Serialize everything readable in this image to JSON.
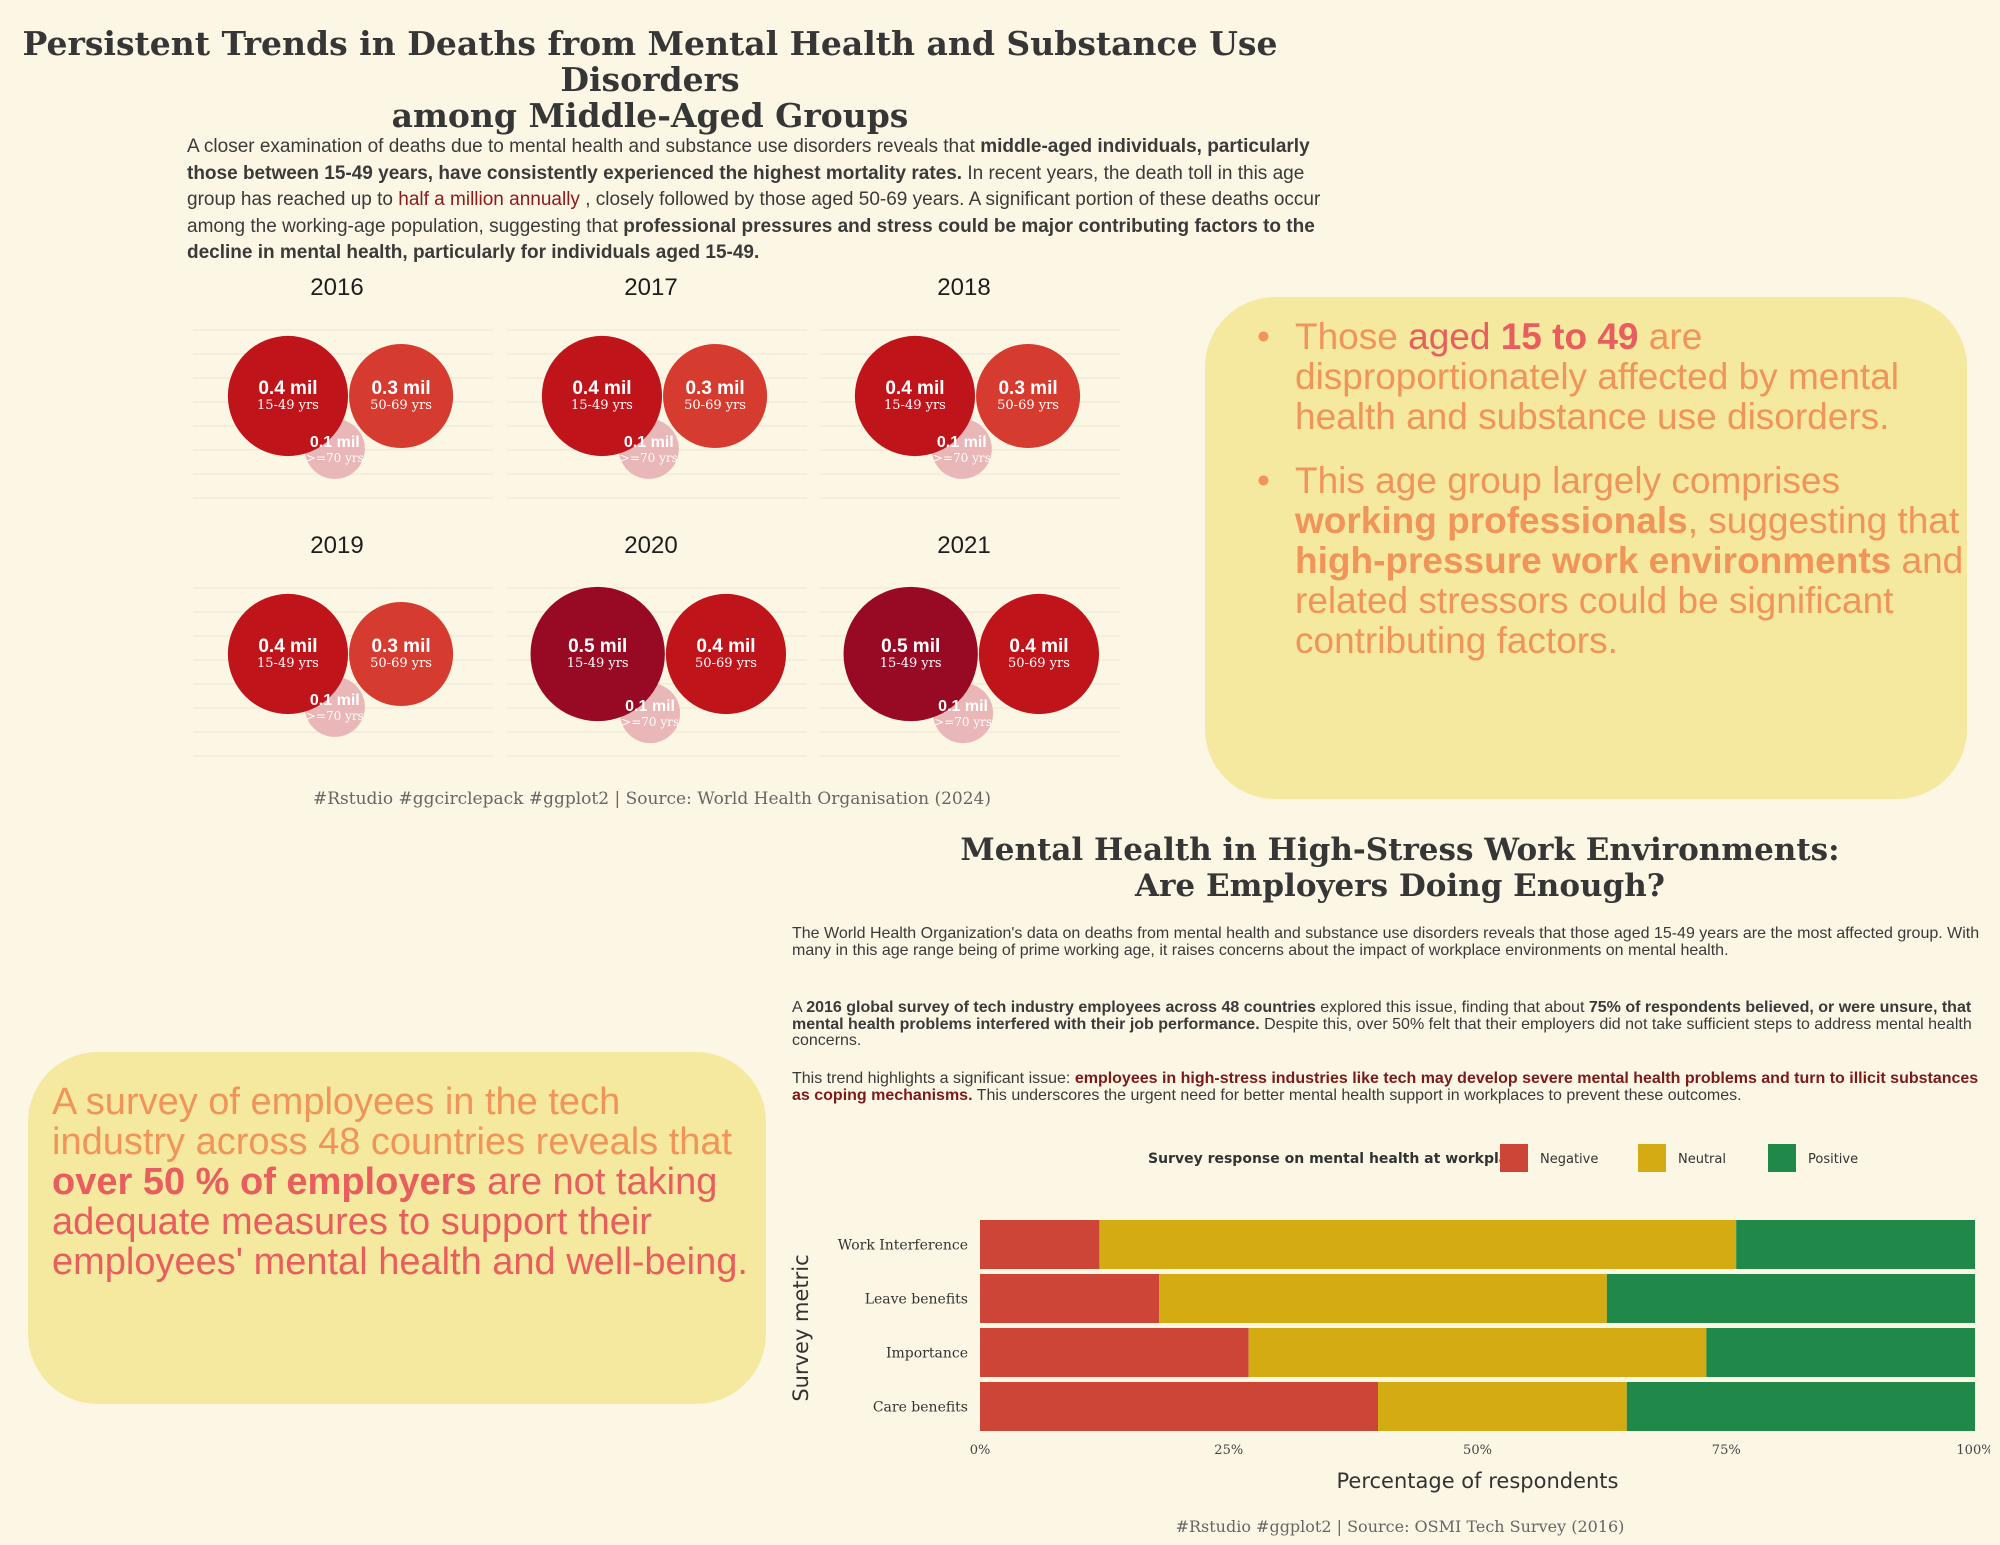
{
  "header": {
    "title_line1": "Persistent Trends in Deaths from Mental Health and Substance Use Disorders",
    "title_line2": "among Middle-Aged Groups"
  },
  "intro": {
    "t1": "A closer examination of deaths due to mental health and substance use disorders reveals that ",
    "b1": "middle-aged individuals, particularly those between 15-49 years, have consistently experienced the highest mortality rates.",
    "t2": " In recent years, the death toll in this age group has reached up to ",
    "link": "half a million annually",
    "t3": " , closely followed by those aged 50-69 years. A significant portion of these deaths occur among the working-age population, suggesting that ",
    "b2": "professional pressures and stress could be major contributing factors to the decline in mental health, particularly for individuals aged 15-49."
  },
  "chart_data": [
    {
      "type": "circlepack",
      "panels": [
        {
          "year": "2016",
          "groups": [
            {
              "age": "15-49 yrs",
              "label": "0.4 mil",
              "value": 0.4,
              "color": "#c0141b"
            },
            {
              "age": "50-69 yrs",
              "label": "0.3 mil",
              "value": 0.3,
              "color": "#d63b30"
            },
            {
              "age": ">=70 yrs",
              "label": "0.1 mil",
              "value": 0.1,
              "color": "#e9b7b7"
            }
          ]
        },
        {
          "year": "2017",
          "groups": [
            {
              "age": "15-49 yrs",
              "label": "0.4 mil",
              "value": 0.4,
              "color": "#c0141b"
            },
            {
              "age": "50-69 yrs",
              "label": "0.3 mil",
              "value": 0.3,
              "color": "#d63b30"
            },
            {
              "age": ">=70 yrs",
              "label": "0.1 mil",
              "value": 0.1,
              "color": "#e9b7b7"
            }
          ]
        },
        {
          "year": "2018",
          "groups": [
            {
              "age": "15-49 yrs",
              "label": "0.4 mil",
              "value": 0.4,
              "color": "#c0141b"
            },
            {
              "age": "50-69 yrs",
              "label": "0.3 mil",
              "value": 0.3,
              "color": "#d63b30"
            },
            {
              "age": ">=70 yrs",
              "label": "0.1 mil",
              "value": 0.1,
              "color": "#e9b7b7"
            }
          ]
        },
        {
          "year": "2019",
          "groups": [
            {
              "age": "15-49 yrs",
              "label": "0.4 mil",
              "value": 0.4,
              "color": "#c0141b"
            },
            {
              "age": "50-69 yrs",
              "label": "0.3 mil",
              "value": 0.3,
              "color": "#d63b30"
            },
            {
              "age": ">=70 yrs",
              "label": "0.1 mil",
              "value": 0.1,
              "color": "#e9b7b7"
            }
          ]
        },
        {
          "year": "2020",
          "groups": [
            {
              "age": "15-49 yrs",
              "label": "0.5 mil",
              "value": 0.5,
              "color": "#980a24"
            },
            {
              "age": "50-69 yrs",
              "label": "0.4 mil",
              "value": 0.4,
              "color": "#c0141b"
            },
            {
              "age": ">=70 yrs",
              "label": "0.1 mil",
              "value": 0.1,
              "color": "#e9b7b7"
            }
          ]
        },
        {
          "year": "2021",
          "groups": [
            {
              "age": "15-49 yrs",
              "label": "0.5 mil",
              "value": 0.5,
              "color": "#980a24"
            },
            {
              "age": "50-69 yrs",
              "label": "0.4 mil",
              "value": 0.4,
              "color": "#c0141b"
            },
            {
              "age": ">=70 yrs",
              "label": "0.1 mil",
              "value": 0.1,
              "color": "#e9b7b7"
            }
          ]
        }
      ]
    },
    {
      "type": "bar",
      "orientation": "horizontal",
      "stacked": true,
      "legend_title": "Survey response on mental health at workplace",
      "legend_position": "top",
      "xlabel": "Percentage of respondents",
      "ylabel": "Survey metric",
      "xlim": [
        0,
        100
      ],
      "x_ticks": [
        "0%",
        "25%",
        "50%",
        "75%",
        "100%"
      ],
      "categories": [
        "Work Interference",
        "Leave benefits",
        "Importance",
        "Care benefits"
      ],
      "series": [
        {
          "name": "Negative",
          "color": "#cc4536",
          "values": [
            12,
            18,
            27,
            40
          ]
        },
        {
          "name": "Neutral",
          "color": "#d4ab12",
          "values": [
            64,
            45,
            46,
            25
          ]
        },
        {
          "name": "Positive",
          "color": "#20894a",
          "values": [
            24,
            37,
            27,
            35
          ]
        }
      ]
    }
  ],
  "source1": "#Rstudio #ggcirclepack #ggplot2 | Source: World Health Organisation (2024)",
  "callout_right": {
    "p1_a": "Those ",
    "p1_b": "aged ",
    "p1_c": "15 to 49",
    "p1_d": " are disproportionately affected by mental health and substance use disorders.",
    "p2_a": "This age group largely comprises ",
    "p2_b": "working professionals",
    "p2_c": ", suggesting that ",
    "p2_d": "high-pressure work environments",
    "p2_e": " and related stressors could be significant contributing factors."
  },
  "section2": {
    "title_line1": "Mental Health in High-Stress Work Environments:",
    "title_line2": "Are Employers Doing Enough?",
    "para1": "The World Health Organization's data on deaths from mental health and substance use disorders reveals that those aged 15-49 years are the most affected group. With many in this age range being of prime working age, it raises concerns about the impact of workplace environments on mental health.",
    "para2_a": "A ",
    "para2_b": "2016 global survey of tech industry employees across 48 countries",
    "para2_c": " explored this issue, finding that about ",
    "para2_d": "75% of respondents believed, or were unsure, that mental health problems interfered with their job performance.",
    "para2_e": " Despite this, over 50% felt that their employers did not take sufficient steps to address mental health concerns.",
    "para3_a": "This trend highlights a significant issue: ",
    "para3_b": "employees in high-stress industries like tech may develop severe mental health problems and turn to illicit substances as coping mechanisms.",
    "para3_c": " This underscores the urgent need for better mental health support in workplaces to prevent these outcomes."
  },
  "callout_left": {
    "a": "A survey of employees in the tech industry across 48 countries reveals that ",
    "b": "over 50 % of employers",
    "c": " are not taking adequate measures to support their employees' mental health and well-being."
  },
  "source2": "#Rstudio #ggplot2 | Source: OSMI Tech Survey (2016)"
}
